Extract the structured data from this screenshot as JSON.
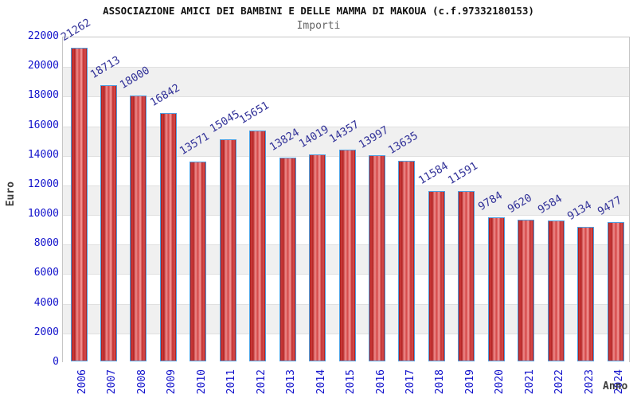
{
  "header": {
    "title": "ASSOCIAZIONE AMICI DEI BAMBINI E DELLE MAMMA DI MAKOUA (c.f.97332180153)",
    "subtitle": "Importi"
  },
  "chart_data": {
    "type": "bar",
    "title": "ASSOCIAZIONE AMICI DEI BAMBINI E DELLE MAMMA DI MAKOUA (c.f.97332180153)",
    "subtitle": "Importi",
    "xlabel": "Anno",
    "ylabel": "Euro",
    "categories": [
      "2006",
      "2007",
      "2008",
      "2009",
      "2010",
      "2011",
      "2012",
      "2013",
      "2014",
      "2015",
      "2016",
      "2017",
      "2018",
      "2019",
      "2020",
      "2021",
      "2022",
      "2023",
      "2024"
    ],
    "values": [
      21262,
      18713,
      18000,
      16842,
      13571,
      15045,
      15651,
      13824,
      14019,
      14357,
      13997,
      13635,
      11584,
      11591,
      9784,
      9620,
      9584,
      9134,
      9477
    ],
    "ylim": [
      0,
      22000
    ],
    "yticks": [
      0,
      2000,
      4000,
      6000,
      8000,
      10000,
      12000,
      14000,
      16000,
      18000,
      20000,
      22000
    ],
    "grid": true,
    "legend": false,
    "layout_hints": {
      "bands_alternating": true,
      "bar_labels_rotated_deg": -31,
      "x_labels_rotated_deg": -90
    },
    "colors": {
      "bar_fill_dark": "#a01818",
      "bar_fill_light": "#f49b9b",
      "bar_border": "#4f9fe0",
      "tick_label": "#1414cc",
      "value_label": "#333399",
      "band_gray": "#f0f0f0",
      "band_white": "#ffffff",
      "gridline": "#e0e0e0",
      "plot_border": "#c6c6c6",
      "axis_title": "#3c3c3c",
      "title": "#111111",
      "subtitle": "#666666"
    }
  }
}
